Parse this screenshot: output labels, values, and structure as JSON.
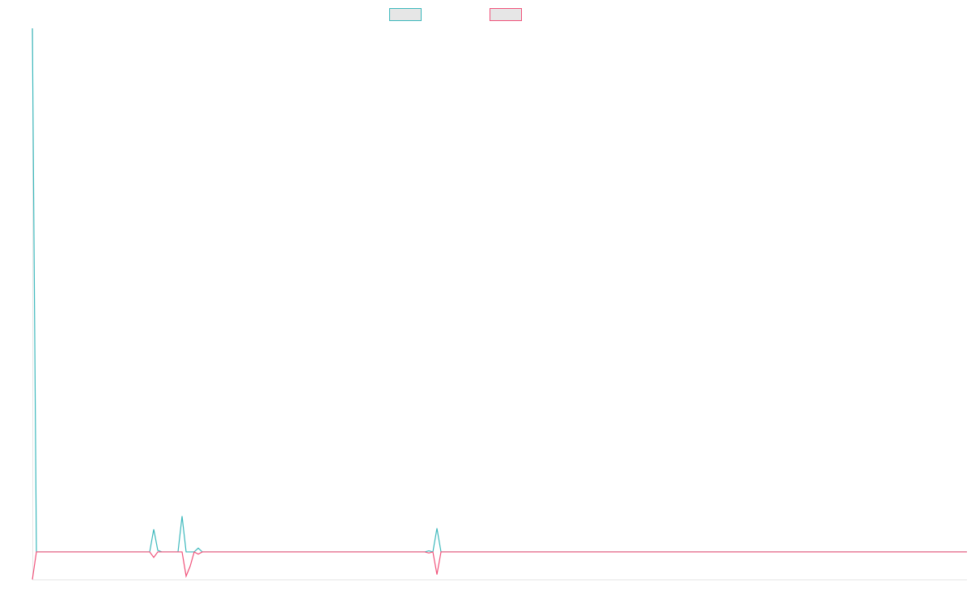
{
  "chart_data": {
    "type": "line",
    "categories": [
      null,
      null,
      null,
      null,
      null,
      null,
      null,
      null,
      null,
      null,
      null,
      null,
      null,
      null,
      null,
      null,
      null,
      null,
      null,
      null,
      null,
      null,
      null,
      null,
      null,
      null,
      null,
      null,
      null,
      null,
      null,
      null,
      null,
      null,
      null,
      null,
      null,
      null,
      null,
      null,
      null,
      null,
      null,
      null,
      null,
      null,
      null,
      null,
      null,
      null,
      null,
      null,
      null,
      null,
      null,
      null,
      null,
      null,
      null,
      null,
      null,
      null,
      null,
      null,
      null,
      null,
      null,
      null,
      null,
      null,
      null,
      null,
      null,
      null,
      null,
      null,
      null,
      null,
      null,
      null,
      null,
      null,
      null,
      null,
      null,
      null,
      null,
      null,
      null,
      null,
      null,
      null,
      null,
      null,
      null,
      null,
      null,
      null,
      null,
      null,
      null,
      null,
      null,
      null,
      null,
      null,
      null,
      null,
      null,
      null,
      null,
      null,
      null,
      null,
      null,
      null,
      null,
      null,
      null,
      null,
      null,
      null,
      null,
      null,
      null,
      null,
      null,
      null,
      null,
      null,
      null,
      null,
      null,
      null,
      null,
      null,
      null,
      null,
      null,
      null,
      null,
      null,
      null,
      null,
      null,
      null,
      null,
      null,
      null,
      null,
      null,
      null,
      null,
      null,
      null,
      null,
      null,
      null,
      null,
      null,
      null,
      null,
      null,
      null,
      null,
      null,
      null,
      null,
      null,
      null,
      null,
      null,
      null,
      null,
      null,
      null,
      null,
      null,
      null,
      null,
      null,
      null,
      null,
      null,
      null,
      null,
      null,
      null,
      null,
      null,
      null,
      null,
      null,
      null,
      null,
      null,
      null,
      null,
      null,
      null,
      null,
      null,
      null,
      null,
      null,
      null,
      null,
      null,
      null,
      null,
      null,
      null,
      null,
      null,
      null,
      null,
      null,
      null,
      null,
      null,
      null,
      null,
      null,
      null,
      null,
      null,
      null,
      null,
      null,
      null,
      null,
      null
    ],
    "series": [
      {
        "color": "#3cb8bc",
        "values": [
          95,
          0,
          0,
          0,
          0,
          0,
          0,
          0,
          0,
          0,
          0,
          0,
          0,
          0,
          0,
          0,
          0,
          0,
          0,
          0,
          0,
          0,
          0,
          0,
          0,
          0,
          0,
          0,
          0,
          0,
          4.1,
          0.3,
          0,
          0,
          0,
          0,
          0,
          6.5,
          0,
          0,
          0,
          0.7,
          0,
          0,
          0,
          0,
          0,
          0,
          0,
          0,
          0,
          0,
          0,
          0,
          0,
          0,
          0,
          0,
          0,
          0,
          0,
          0,
          0,
          0,
          0,
          0,
          0,
          0,
          0,
          0,
          0,
          0,
          0,
          0,
          0,
          0,
          0,
          0,
          0,
          0,
          0,
          0,
          0,
          0,
          0,
          0,
          0,
          0,
          0,
          0,
          0,
          0,
          0,
          0,
          0,
          0,
          0,
          0,
          0.2,
          0,
          4.3,
          0,
          0,
          0,
          0,
          0,
          0,
          0,
          0,
          0,
          0,
          0,
          0,
          0,
          0,
          0,
          0,
          0,
          0,
          0,
          0,
          0,
          0,
          0,
          0,
          0,
          0,
          0,
          0,
          0,
          0,
          0,
          0,
          0,
          0,
          0,
          0,
          0,
          0,
          0,
          0,
          0,
          0,
          0,
          0,
          0,
          0,
          0,
          0,
          0,
          0,
          0,
          0,
          0,
          0,
          0,
          0,
          0,
          0,
          0,
          0,
          0,
          0,
          0,
          0,
          0,
          0,
          0,
          0,
          0,
          0,
          0,
          0,
          0,
          0,
          0,
          0,
          0,
          0,
          0,
          0,
          0,
          0,
          0,
          0,
          0,
          0,
          0,
          0,
          0,
          0,
          0,
          0,
          0,
          0,
          0,
          0,
          0,
          0,
          0,
          0,
          0,
          0,
          0,
          0,
          0,
          0,
          0,
          0,
          0,
          0,
          0,
          0,
          0,
          0,
          0,
          0,
          0,
          0,
          0,
          0,
          0,
          0,
          0,
          0,
          0,
          0,
          0,
          0,
          0,
          0,
          0
        ]
      },
      {
        "color": "#f0527a",
        "values": [
          -5,
          0,
          0,
          0,
          0,
          0,
          0,
          0,
          0,
          0,
          0,
          0,
          0,
          0,
          0,
          0,
          0,
          0,
          0,
          0,
          0,
          0,
          0,
          0,
          0,
          0,
          0,
          0,
          0,
          0,
          -1,
          0,
          0,
          0,
          0,
          0,
          0,
          0,
          -4.4,
          -2.6,
          0,
          -0.4,
          0,
          0,
          0,
          0,
          0,
          0,
          0,
          0,
          0,
          0,
          0,
          0,
          0,
          0,
          0,
          0,
          0,
          0,
          0,
          0,
          0,
          0,
          0,
          0,
          0,
          0,
          0,
          0,
          0,
          0,
          0,
          0,
          0,
          0,
          0,
          0,
          0,
          0,
          0,
          0,
          0,
          0,
          0,
          0,
          0,
          0,
          0,
          0,
          0,
          0,
          0,
          0,
          0,
          0,
          0,
          0,
          -0.2,
          0,
          -4.1,
          0,
          0,
          0,
          0,
          0,
          0,
          0,
          0,
          0,
          0,
          0,
          0,
          0,
          0,
          0,
          0,
          0,
          0,
          0,
          0,
          0,
          0,
          0,
          0,
          0,
          0,
          0,
          0,
          0,
          0,
          0,
          0,
          0,
          0,
          0,
          0,
          0,
          0,
          0,
          0,
          0,
          0,
          0,
          0,
          0,
          0,
          0,
          0,
          0,
          0,
          0,
          0,
          0,
          0,
          0,
          0,
          0,
          0,
          0,
          0,
          0,
          0,
          0,
          0,
          0,
          0,
          0,
          0,
          0,
          0,
          0,
          0,
          0,
          0,
          0,
          0,
          0,
          0,
          0,
          0,
          0,
          0,
          0,
          0,
          0,
          0,
          0,
          0,
          0,
          0,
          0,
          0,
          0,
          0,
          0,
          0,
          0,
          0,
          0,
          0,
          0,
          0,
          0,
          0,
          0,
          0,
          0,
          0,
          0,
          0,
          0,
          0,
          0,
          0,
          0,
          0,
          0,
          0,
          0,
          0,
          0,
          0,
          0,
          0,
          0,
          0,
          0,
          0,
          0,
          0,
          0
        ]
      }
    ],
    "ylim": [
      -5,
      95
    ]
  }
}
